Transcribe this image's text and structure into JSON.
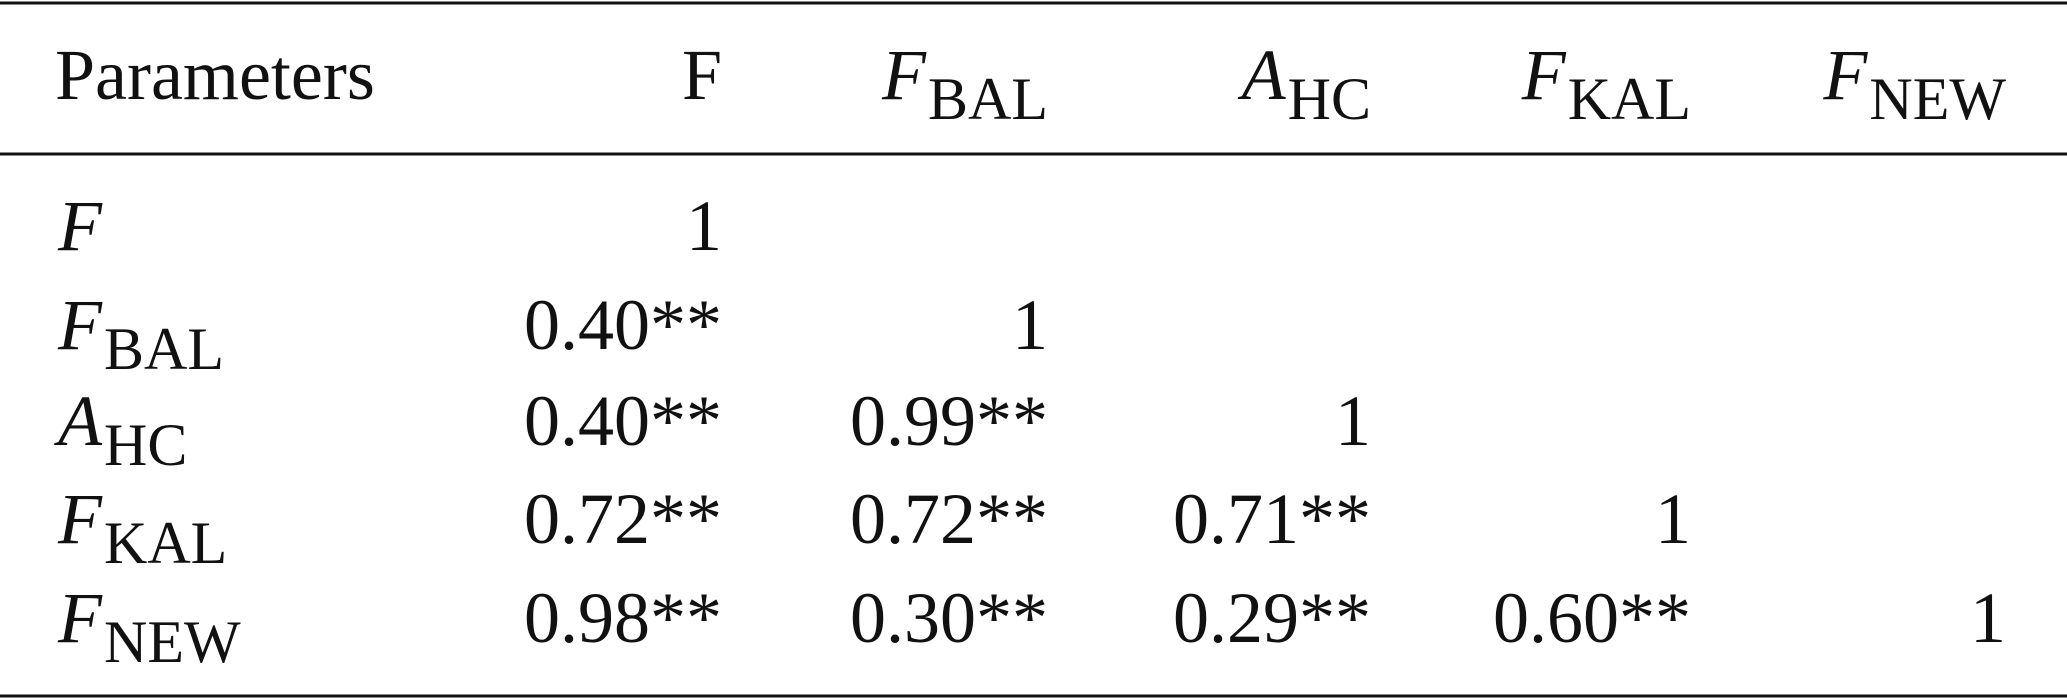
{
  "table": {
    "header": [
      {
        "text": "Parameters"
      },
      {
        "text": "F"
      },
      {
        "base": "F",
        "sub": "BAL"
      },
      {
        "base": "A",
        "sub": "HC"
      },
      {
        "base": "F",
        "sub": "KAL"
      },
      {
        "base": "F",
        "sub": "NEW"
      }
    ],
    "rows": [
      {
        "label": {
          "base": "F"
        },
        "cells": [
          "1"
        ]
      },
      {
        "label": {
          "base": "F",
          "sub": "BAL"
        },
        "cells": [
          "0.40**",
          "1"
        ]
      },
      {
        "label": {
          "base": "A",
          "sub": "HC"
        },
        "cells": [
          "0.40**",
          "0.99**",
          "1"
        ]
      },
      {
        "label": {
          "base": "F",
          "sub": "KAL"
        },
        "cells": [
          "0.72**",
          "0.72**",
          "0.71**",
          "1"
        ]
      },
      {
        "label": {
          "base": "F",
          "sub": "NEW"
        },
        "cells": [
          "0.98**",
          "0.30**",
          "0.29**",
          "0.60**",
          "1"
        ]
      }
    ]
  }
}
